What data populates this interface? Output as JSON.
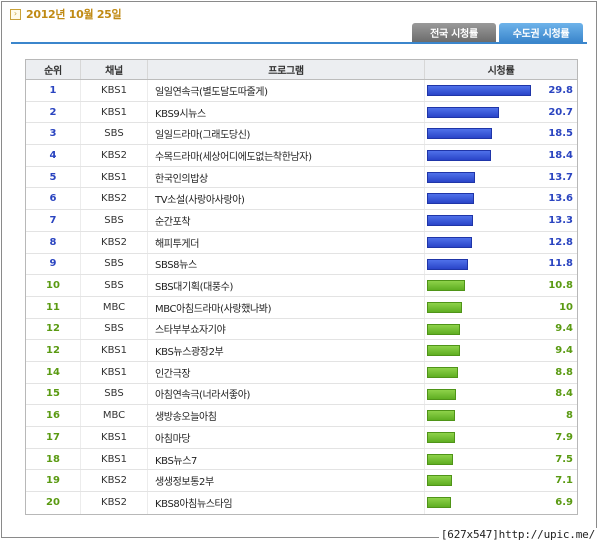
{
  "date": "2012년 10월 25일",
  "date_icon": "chevron-right-icon",
  "tabs": [
    {
      "label": "전국 시청률",
      "active": false
    },
    {
      "label": "수도권 시청률",
      "active": true
    }
  ],
  "table": {
    "headers": [
      "순위",
      "채널",
      "프로그램",
      "시청률"
    ],
    "max_rate": 29.8,
    "colors": {
      "top": "#2a45c8",
      "rest": "#5fae22"
    },
    "rows": [
      {
        "rank": "1",
        "channel": "KBS1",
        "program": "일일연속극(별도달도따줄게)",
        "rate": 29.8
      },
      {
        "rank": "2",
        "channel": "KBS1",
        "program": "KBS9시뉴스",
        "rate": 20.7
      },
      {
        "rank": "3",
        "channel": "SBS",
        "program": "일일드라마(그래도당신)",
        "rate": 18.5
      },
      {
        "rank": "4",
        "channel": "KBS2",
        "program": "수목드라마(세상어디에도없는착한남자)",
        "rate": 18.4
      },
      {
        "rank": "5",
        "channel": "KBS1",
        "program": "한국인의밥상",
        "rate": 13.7
      },
      {
        "rank": "6",
        "channel": "KBS2",
        "program": "TV소설(사랑아사랑아)",
        "rate": 13.6
      },
      {
        "rank": "7",
        "channel": "SBS",
        "program": "순간포착",
        "rate": 13.3
      },
      {
        "rank": "8",
        "channel": "KBS2",
        "program": "해피투게더",
        "rate": 12.8
      },
      {
        "rank": "9",
        "channel": "SBS",
        "program": "SBS8뉴스",
        "rate": 11.8
      },
      {
        "rank": "10",
        "channel": "SBS",
        "program": "SBS대기획(대풍수)",
        "rate": 10.8
      },
      {
        "rank": "11",
        "channel": "MBC",
        "program": "MBC아침드라마(사랑했나봐)",
        "rate": 10
      },
      {
        "rank": "12",
        "channel": "SBS",
        "program": "스타부부쇼자기야",
        "rate": 9.4
      },
      {
        "rank": "12",
        "channel": "KBS1",
        "program": "KBS뉴스광장2부",
        "rate": 9.4
      },
      {
        "rank": "14",
        "channel": "KBS1",
        "program": "인간극장",
        "rate": 8.8
      },
      {
        "rank": "15",
        "channel": "SBS",
        "program": "아침연속극(너라서좋아)",
        "rate": 8.4
      },
      {
        "rank": "16",
        "channel": "MBC",
        "program": "생방송오늘아침",
        "rate": 8
      },
      {
        "rank": "17",
        "channel": "KBS1",
        "program": "아침마당",
        "rate": 7.9
      },
      {
        "rank": "18",
        "channel": "KBS1",
        "program": "KBS뉴스7",
        "rate": 7.5
      },
      {
        "rank": "19",
        "channel": "KBS2",
        "program": "생생정보통2부",
        "rate": 7.1
      },
      {
        "rank": "20",
        "channel": "KBS2",
        "program": "KBS8아침뉴스타임",
        "rate": 6.9
      }
    ]
  },
  "watermark": "[627x547]http://upic.me/"
}
